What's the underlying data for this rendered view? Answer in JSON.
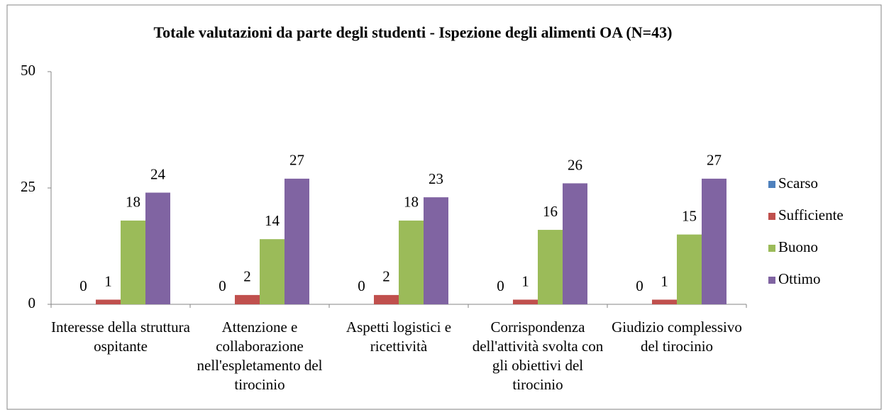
{
  "chart_data": {
    "type": "bar",
    "title": "Totale valutazioni da parte degli studenti - Ispezione degli alimenti OA (N=43)",
    "categories": [
      "Interesse della struttura ospitante",
      "Attenzione e collaborazione nell'espletamento del tirocinio",
      "Aspetti logistici e ricettività",
      "Corrispondenza dell'attività svolta con gli obiettivi del tirocinio",
      "Giudizio complessivo del tirocinio"
    ],
    "series": [
      {
        "name": "Scarso",
        "color": "#4f81bd",
        "values": [
          0,
          0,
          0,
          0,
          0
        ]
      },
      {
        "name": "Sufficiente",
        "color": "#c0504d",
        "values": [
          1,
          2,
          2,
          1,
          1
        ]
      },
      {
        "name": "Buono",
        "color": "#9bbb59",
        "values": [
          18,
          14,
          18,
          16,
          15
        ]
      },
      {
        "name": "Ottimo",
        "color": "#8064a2",
        "values": [
          24,
          27,
          23,
          26,
          27
        ]
      }
    ],
    "ylim": [
      0,
      50
    ],
    "yticks": [
      0,
      25,
      50
    ],
    "grid": false,
    "legend": "right"
  }
}
